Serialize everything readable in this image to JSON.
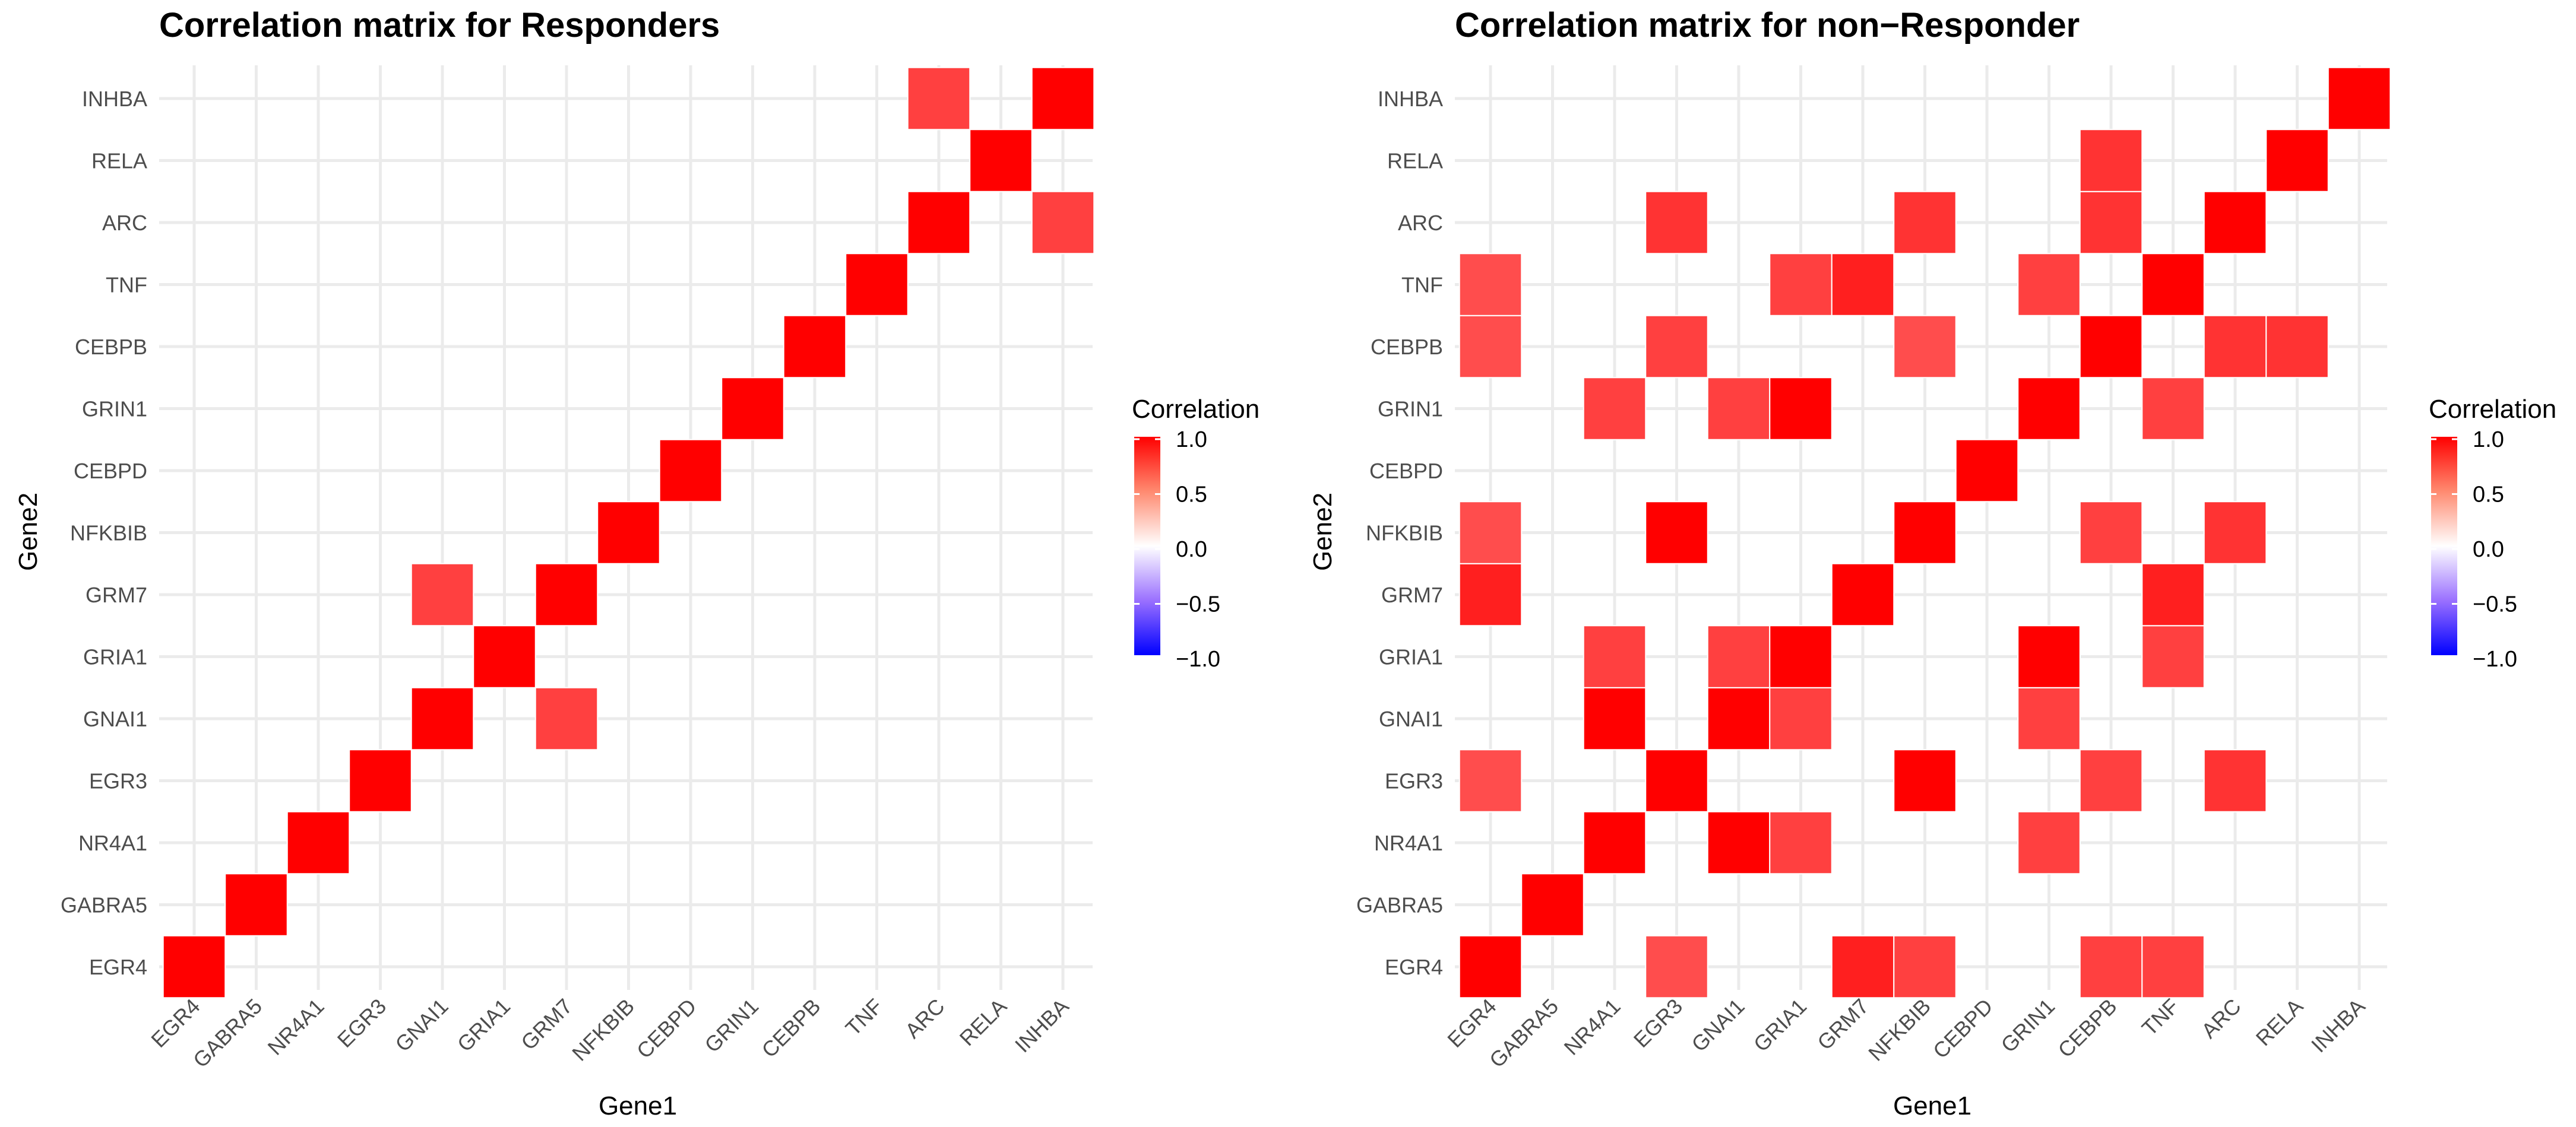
{
  "chart_data": [
    {
      "type": "heatmap",
      "title": "Correlation matrix for  Responders",
      "xlabel": "Gene1",
      "ylabel": "Gene2",
      "genes": [
        "EGR4",
        "GABRA5",
        "NR4A1",
        "EGR3",
        "GNAI1",
        "GRIA1",
        "GRM7",
        "NFKBIB",
        "CEBPD",
        "GRIN1",
        "CEBPB",
        "TNF",
        "ARC",
        "RELA",
        "INHBA"
      ],
      "cells": [
        {
          "x": "EGR4",
          "y": "EGR4",
          "value": 1.0
        },
        {
          "x": "GABRA5",
          "y": "GABRA5",
          "value": 1.0
        },
        {
          "x": "NR4A1",
          "y": "NR4A1",
          "value": 1.0
        },
        {
          "x": "EGR3",
          "y": "EGR3",
          "value": 1.0
        },
        {
          "x": "GNAI1",
          "y": "GNAI1",
          "value": 1.0
        },
        {
          "x": "GNAI1",
          "y": "GRM7",
          "value": 0.75
        },
        {
          "x": "GRIA1",
          "y": "GRIA1",
          "value": 1.0
        },
        {
          "x": "GRM7",
          "y": "GRM7",
          "value": 1.0
        },
        {
          "x": "GRM7",
          "y": "GNAI1",
          "value": 0.75
        },
        {
          "x": "NFKBIB",
          "y": "NFKBIB",
          "value": 1.0
        },
        {
          "x": "CEBPD",
          "y": "CEBPD",
          "value": 1.0
        },
        {
          "x": "GRIN1",
          "y": "GRIN1",
          "value": 1.0
        },
        {
          "x": "CEBPB",
          "y": "CEBPB",
          "value": 1.0
        },
        {
          "x": "TNF",
          "y": "TNF",
          "value": 1.0
        },
        {
          "x": "ARC",
          "y": "ARC",
          "value": 1.0
        },
        {
          "x": "ARC",
          "y": "INHBA",
          "value": 0.75
        },
        {
          "x": "RELA",
          "y": "RELA",
          "value": 1.0
        },
        {
          "x": "INHBA",
          "y": "INHBA",
          "value": 1.0
        },
        {
          "x": "INHBA",
          "y": "ARC",
          "value": 0.75
        }
      ],
      "legend": {
        "title": "Correlation",
        "ticks": [
          "1.0",
          "0.5",
          "0.0",
          "−0.5",
          "−1.0"
        ],
        "range": [
          -1,
          1
        ]
      }
    },
    {
      "type": "heatmap",
      "title": "Correlation matrix for  non−Responder",
      "xlabel": "Gene1",
      "ylabel": "Gene2",
      "genes": [
        "EGR4",
        "GABRA5",
        "NR4A1",
        "EGR3",
        "GNAI1",
        "GRIA1",
        "GRM7",
        "NFKBIB",
        "CEBPD",
        "GRIN1",
        "CEBPB",
        "TNF",
        "ARC",
        "RELA",
        "INHBA"
      ],
      "cells": [
        {
          "x": "EGR4",
          "y": "EGR4",
          "value": 1.0
        },
        {
          "x": "EGR4",
          "y": "EGR3",
          "value": 0.7
        },
        {
          "x": "EGR4",
          "y": "GRM7",
          "value": 0.88
        },
        {
          "x": "EGR4",
          "y": "NFKBIB",
          "value": 0.7
        },
        {
          "x": "EGR4",
          "y": "CEBPB",
          "value": 0.7
        },
        {
          "x": "EGR4",
          "y": "TNF",
          "value": 0.7
        },
        {
          "x": "GABRA5",
          "y": "GABRA5",
          "value": 1.0
        },
        {
          "x": "NR4A1",
          "y": "NR4A1",
          "value": 1.0
        },
        {
          "x": "NR4A1",
          "y": "GNAI1",
          "value": 1.0
        },
        {
          "x": "NR4A1",
          "y": "GRIA1",
          "value": 0.75
        },
        {
          "x": "NR4A1",
          "y": "GRIN1",
          "value": 0.75
        },
        {
          "x": "EGR3",
          "y": "EGR4",
          "value": 0.7
        },
        {
          "x": "EGR3",
          "y": "EGR3",
          "value": 1.0
        },
        {
          "x": "EGR3",
          "y": "NFKBIB",
          "value": 1.0
        },
        {
          "x": "EGR3",
          "y": "CEBPB",
          "value": 0.75
        },
        {
          "x": "EGR3",
          "y": "ARC",
          "value": 0.8
        },
        {
          "x": "GNAI1",
          "y": "NR4A1",
          "value": 1.0
        },
        {
          "x": "GNAI1",
          "y": "GNAI1",
          "value": 1.0
        },
        {
          "x": "GNAI1",
          "y": "GRIA1",
          "value": 0.75
        },
        {
          "x": "GNAI1",
          "y": "GRIN1",
          "value": 0.75
        },
        {
          "x": "GRIA1",
          "y": "NR4A1",
          "value": 0.75
        },
        {
          "x": "GRIA1",
          "y": "GNAI1",
          "value": 0.75
        },
        {
          "x": "GRIA1",
          "y": "GRIA1",
          "value": 1.0
        },
        {
          "x": "GRIA1",
          "y": "GRIN1",
          "value": 1.0
        },
        {
          "x": "GRIA1",
          "y": "TNF",
          "value": 0.75
        },
        {
          "x": "GRM7",
          "y": "EGR4",
          "value": 0.88
        },
        {
          "x": "GRM7",
          "y": "GRM7",
          "value": 1.0
        },
        {
          "x": "GRM7",
          "y": "TNF",
          "value": 0.88
        },
        {
          "x": "NFKBIB",
          "y": "EGR4",
          "value": 0.75
        },
        {
          "x": "NFKBIB",
          "y": "EGR3",
          "value": 1.0
        },
        {
          "x": "NFKBIB",
          "y": "NFKBIB",
          "value": 1.0
        },
        {
          "x": "NFKBIB",
          "y": "CEBPB",
          "value": 0.7
        },
        {
          "x": "NFKBIB",
          "y": "ARC",
          "value": 0.8
        },
        {
          "x": "CEBPD",
          "y": "CEBPD",
          "value": 1.0
        },
        {
          "x": "GRIN1",
          "y": "NR4A1",
          "value": 0.75
        },
        {
          "x": "GRIN1",
          "y": "GNAI1",
          "value": 0.75
        },
        {
          "x": "GRIN1",
          "y": "GRIA1",
          "value": 1.0
        },
        {
          "x": "GRIN1",
          "y": "GRIN1",
          "value": 1.0
        },
        {
          "x": "GRIN1",
          "y": "TNF",
          "value": 0.75
        },
        {
          "x": "CEBPB",
          "y": "EGR4",
          "value": 0.75
        },
        {
          "x": "CEBPB",
          "y": "EGR3",
          "value": 0.75
        },
        {
          "x": "CEBPB",
          "y": "NFKBIB",
          "value": 0.75
        },
        {
          "x": "CEBPB",
          "y": "CEBPB",
          "value": 1.0
        },
        {
          "x": "CEBPB",
          "y": "ARC",
          "value": 0.8
        },
        {
          "x": "CEBPB",
          "y": "RELA",
          "value": 0.8
        },
        {
          "x": "TNF",
          "y": "EGR4",
          "value": 0.75
        },
        {
          "x": "TNF",
          "y": "GRIA1",
          "value": 0.75
        },
        {
          "x": "TNF",
          "y": "GRM7",
          "value": 0.88
        },
        {
          "x": "TNF",
          "y": "GRIN1",
          "value": 0.75
        },
        {
          "x": "TNF",
          "y": "TNF",
          "value": 1.0
        },
        {
          "x": "ARC",
          "y": "EGR3",
          "value": 0.8
        },
        {
          "x": "ARC",
          "y": "NFKBIB",
          "value": 0.8
        },
        {
          "x": "ARC",
          "y": "CEBPB",
          "value": 0.8
        },
        {
          "x": "ARC",
          "y": "ARC",
          "value": 1.0
        },
        {
          "x": "RELA",
          "y": "CEBPB",
          "value": 0.8
        },
        {
          "x": "RELA",
          "y": "RELA",
          "value": 1.0
        },
        {
          "x": "INHBA",
          "y": "INHBA",
          "value": 1.0
        }
      ],
      "legend": {
        "title": "Correlation",
        "ticks": [
          "1.0",
          "0.5",
          "0.0",
          "−0.5",
          "−1.0"
        ],
        "range": [
          -1,
          1
        ]
      }
    }
  ]
}
